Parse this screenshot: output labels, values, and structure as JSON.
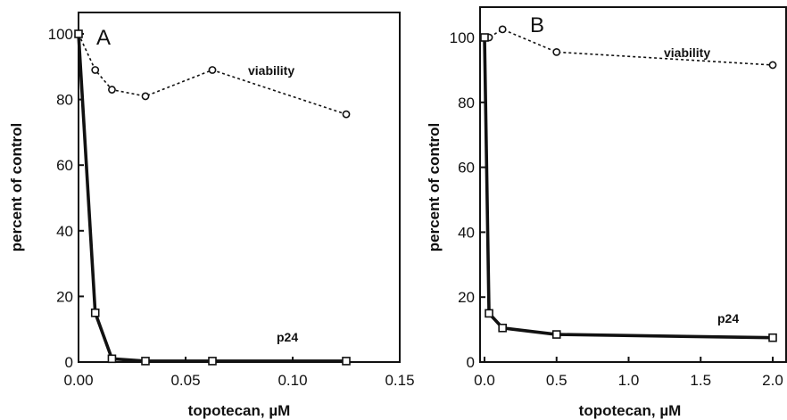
{
  "chart_data": [
    {
      "type": "line",
      "panel_label": "A",
      "xlabel": "topotecan, µM",
      "ylabel": "percent of control",
      "xlim": [
        0,
        0.15
      ],
      "ylim": [
        0,
        105
      ],
      "x_ticks": [
        "0.00",
        "0.05",
        "0.10",
        "0.15"
      ],
      "y_ticks": [
        "0",
        "20",
        "40",
        "60",
        "80",
        "100"
      ],
      "series": [
        {
          "name": "viability",
          "style": "dotted",
          "marker": "circle",
          "x": [
            0,
            0.0078,
            0.0156,
            0.03125,
            0.0625,
            0.125
          ],
          "y": [
            100,
            89,
            83,
            81,
            89,
            75.5
          ]
        },
        {
          "name": "p24",
          "style": "solid-thick",
          "marker": "square",
          "x": [
            0,
            0.0078,
            0.0156,
            0.03125,
            0.0625,
            0.125
          ],
          "y": [
            100,
            15,
            1,
            0.3,
            0.3,
            0.3
          ]
        }
      ]
    },
    {
      "type": "line",
      "panel_label": "B",
      "xlabel": "topotecan, µM",
      "ylabel": "percent of control",
      "xlim": [
        0,
        2.0
      ],
      "ylim": [
        0,
        105
      ],
      "x_ticks": [
        "0.0",
        "0.5",
        "1.0",
        "1.5",
        "2.0"
      ],
      "y_ticks": [
        "0",
        "20",
        "40",
        "60",
        "80",
        "100"
      ],
      "series": [
        {
          "name": "viability",
          "style": "dotted",
          "marker": "circle",
          "x": [
            0,
            0.03125,
            0.125,
            0.5,
            2.0
          ],
          "y": [
            100,
            100,
            102.5,
            95.5,
            91.5
          ]
        },
        {
          "name": "p24",
          "style": "solid-thick",
          "marker": "square",
          "x": [
            0,
            0.03125,
            0.125,
            0.5,
            2.0
          ],
          "y": [
            100,
            15,
            10.5,
            8.5,
            7.5
          ]
        }
      ]
    }
  ],
  "colors": {
    "ink": "#111111",
    "background": "#ffffff"
  }
}
